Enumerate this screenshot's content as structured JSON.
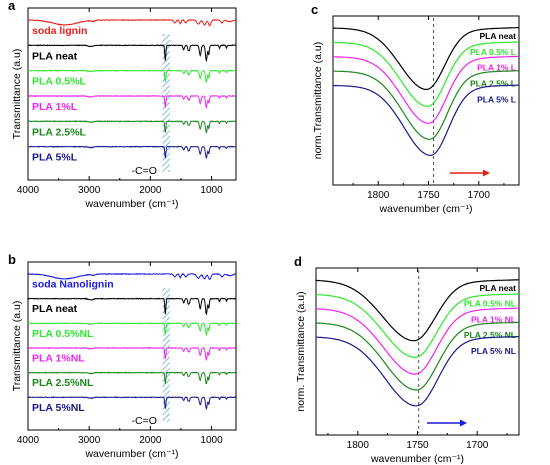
{
  "colors": {
    "red": "#e8201a",
    "black": "#000000",
    "green_light": "#2ee82e",
    "magenta": "#f024f0",
    "green_dark": "#1a8a1a",
    "navy": "#1a1a8c",
    "blue": "#1a1ae0",
    "hatch": "#5a9fd4"
  },
  "chart_data": [
    {
      "panel": "a",
      "type": "line",
      "xlabel": "wavenumber (cm⁻¹)",
      "ylabel": "Transmittance (a.u)",
      "xlim": [
        4000,
        600
      ],
      "xticks": [
        4000,
        3000,
        2000,
        1000
      ],
      "series": [
        {
          "name": "soda lignin",
          "color": "#e8201a"
        },
        {
          "name": "PLA neat",
          "color": "#000000"
        },
        {
          "name": "PLA 0.5%L",
          "color": "#2ee82e"
        },
        {
          "name": "PLA 1%L",
          "color": "#f024f0"
        },
        {
          "name": "PLA 2.5%L",
          "color": "#1a8a1a"
        },
        {
          "name": "PLA 5%L",
          "color": "#1a1a8c"
        }
      ],
      "highlight_band": [
        1680,
        1800
      ],
      "annotation": "-C=O"
    },
    {
      "panel": "b",
      "type": "line",
      "xlabel": "wavenumber (cm⁻¹)",
      "ylabel": "Transmittance (a.u)",
      "xlim": [
        4000,
        600
      ],
      "xticks": [
        4000,
        3000,
        2000,
        1000
      ],
      "series": [
        {
          "name": "soda Nanolignin",
          "color": "#1a1ae0"
        },
        {
          "name": "PLA neat",
          "color": "#000000"
        },
        {
          "name": "PLA 0.5%NL",
          "color": "#2ee82e"
        },
        {
          "name": "PLA 1%NL",
          "color": "#f024f0"
        },
        {
          "name": "PLA 2.5%NL",
          "color": "#1a8a1a"
        },
        {
          "name": "PLA 5%NL",
          "color": "#1a1a8c"
        }
      ],
      "highlight_band": [
        1680,
        1800
      ],
      "annotation": "-C=O"
    },
    {
      "panel": "c",
      "type": "line",
      "xlabel": "wavenumber (cm⁻¹)",
      "ylabel": "norm.Transmittance (a.u)",
      "xlim": [
        1845,
        1660
      ],
      "xticks": [
        1800,
        1750,
        1700
      ],
      "reference_line_x": 1745,
      "series": [
        {
          "name": "PLA neat",
          "color": "#000000",
          "center": 1752,
          "depth": 0.72
        },
        {
          "name": "PLA 0.5% L",
          "color": "#2ee82e",
          "center": 1751,
          "depth": 0.75
        },
        {
          "name": "PLA 1% L",
          "color": "#f024f0",
          "center": 1750,
          "depth": 0.78
        },
        {
          "name": "PLA 2.5% L",
          "color": "#1a8a1a",
          "center": 1749,
          "depth": 0.8
        },
        {
          "name": "PLA 5% L",
          "color": "#1a1a8c",
          "center": 1748,
          "depth": 0.82
        }
      ],
      "arrow_color": "#e8201a"
    },
    {
      "panel": "d",
      "type": "line",
      "xlabel": "wavenumber (cm⁻¹)",
      "ylabel": "norm. Transmittance (a.u)",
      "xlim": [
        1835,
        1665
      ],
      "xticks": [
        1800,
        1750,
        1700
      ],
      "reference_line_x": 1749,
      "series": [
        {
          "name": "PLA neat",
          "color": "#000000",
          "center": 1753,
          "depth": 0.72
        },
        {
          "name": "PLA 0.5% NL",
          "color": "#2ee82e",
          "center": 1752,
          "depth": 0.75
        },
        {
          "name": "PLA 1% NL",
          "color": "#f024f0",
          "center": 1752,
          "depth": 0.78
        },
        {
          "name": "PLA 2.5% NL",
          "color": "#1a8a1a",
          "center": 1751,
          "depth": 0.8
        },
        {
          "name": "PLA 5% NL",
          "color": "#1a1a8c",
          "center": 1751,
          "depth": 0.82
        }
      ],
      "arrow_color": "#1a1ae0"
    }
  ]
}
